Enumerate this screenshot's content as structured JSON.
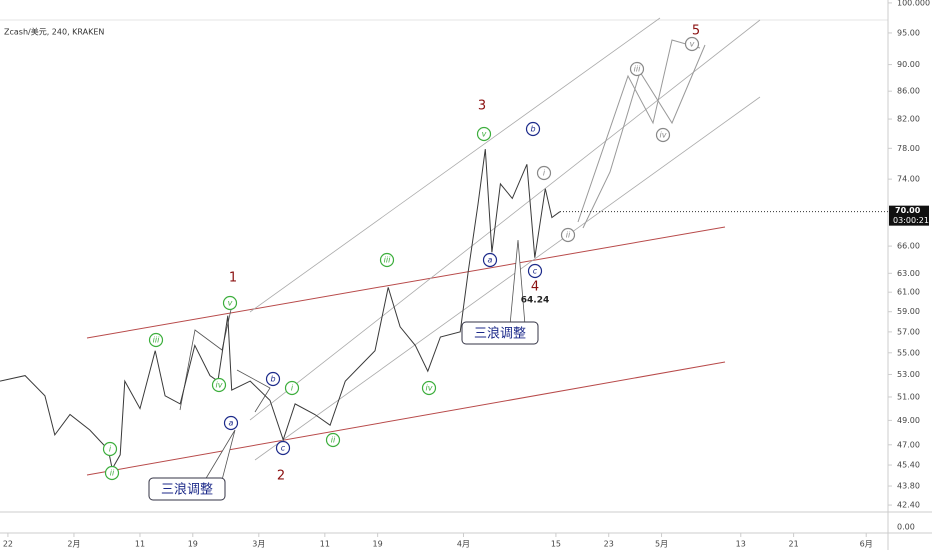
{
  "chart_data": {
    "type": "line",
    "title": "Zcash/美元, 240, KRAKEN",
    "x": [
      19.8,
      23.6,
      26.6,
      28.1,
      30.4,
      33.4,
      36.2,
      36.8,
      38.0,
      38.7,
      41.0,
      43.3,
      44.8,
      47.1,
      49.3,
      51.6,
      52.8,
      54.3,
      54.9,
      57.7,
      60.7,
      62.7,
      64.5,
      67.5,
      69.8,
      72.1,
      76.6,
      78.6,
      80.4,
      82.7,
      84.6,
      86.5,
      89.5,
      90.7,
      92.2,
      93.3,
      94.3,
      95.6,
      97.4,
      99.6,
      100.8,
      102.4,
      103.4,
      104.6
    ],
    "series": [
      {
        "name": "Zcash/美元",
        "color": "#3a3a3a",
        "values": [
          52.4,
          52.9,
          51.1,
          47.8,
          49.5,
          48.2,
          46.6,
          45.1,
          46.2,
          52.4,
          50.0,
          55.2,
          51.1,
          50.4,
          55.7,
          52.9,
          52.4,
          58.6,
          51.6,
          52.4,
          50.7,
          47.4,
          50.4,
          49.5,
          48.6,
          52.4,
          55.2,
          61.5,
          57.5,
          55.7,
          53.3,
          56.5,
          57.0,
          63.1,
          70.9,
          77.9,
          65.3,
          73.4,
          71.6,
          75.9,
          64.7,
          72.8,
          69.3,
          70.0
        ]
      }
    ],
    "xlim": [
      19.8,
      154.3
    ],
    "xticks": [
      {
        "value": 21,
        "label": "22"
      },
      {
        "value": 31,
        "label": "2月"
      },
      {
        "value": 41,
        "label": "11"
      },
      {
        "value": 49,
        "label": "19"
      },
      {
        "value": 59,
        "label": "3月"
      },
      {
        "value": 69,
        "label": "11"
      },
      {
        "value": 77,
        "label": "19"
      },
      {
        "value": 90,
        "label": "4月"
      },
      {
        "value": 104,
        "label": "15"
      },
      {
        "value": 112,
        "label": "23"
      },
      {
        "value": 120,
        "label": "5月"
      },
      {
        "value": 132,
        "label": "13"
      },
      {
        "value": 140,
        "label": "21"
      },
      {
        "value": 151,
        "label": "6月"
      }
    ],
    "ylim": [
      41.9,
      100.5
    ],
    "log_scale": true,
    "yticks": [
      {
        "value": 100,
        "label": "100.000"
      },
      {
        "value": 95,
        "label": "95.00"
      },
      {
        "value": 90,
        "label": "90.00"
      },
      {
        "value": 86,
        "label": "86.00"
      },
      {
        "value": 82,
        "label": "82.00"
      },
      {
        "value": 78,
        "label": "78.00"
      },
      {
        "value": 74,
        "label": "74.00"
      },
      {
        "value": 66,
        "label": "66.00"
      },
      {
        "value": 63,
        "label": "63.00"
      },
      {
        "value": 61,
        "label": "61.00"
      },
      {
        "value": 59,
        "label": "59.00"
      },
      {
        "value": 57,
        "label": "57.00"
      },
      {
        "value": 55,
        "label": "55.00"
      },
      {
        "value": 53,
        "label": "53.00"
      },
      {
        "value": 51,
        "label": "51.00"
      },
      {
        "value": 49,
        "label": "49.00"
      },
      {
        "value": 47,
        "label": "47.00"
      },
      {
        "value": 45.4,
        "label": "45.40"
      },
      {
        "value": 43.8,
        "label": "43.80"
      },
      {
        "value": 42.4,
        "label": "42.40"
      }
    ],
    "last_price": {
      "value": 70,
      "label": "70.00"
    },
    "countdown": "03:00:21",
    "lower_pane_tick": "0.00",
    "annotations": [
      "1",
      "2",
      "3",
      "4",
      "5",
      "i",
      "ii",
      "iii",
      "iv",
      "v",
      "i",
      "ii",
      "iii",
      "iv",
      "v",
      "a",
      "b",
      "c",
      "a",
      "b",
      "c",
      "i",
      "ii",
      "iii",
      "iv",
      "v",
      "64.24",
      "三浪调整",
      "三浪调整"
    ]
  }
}
